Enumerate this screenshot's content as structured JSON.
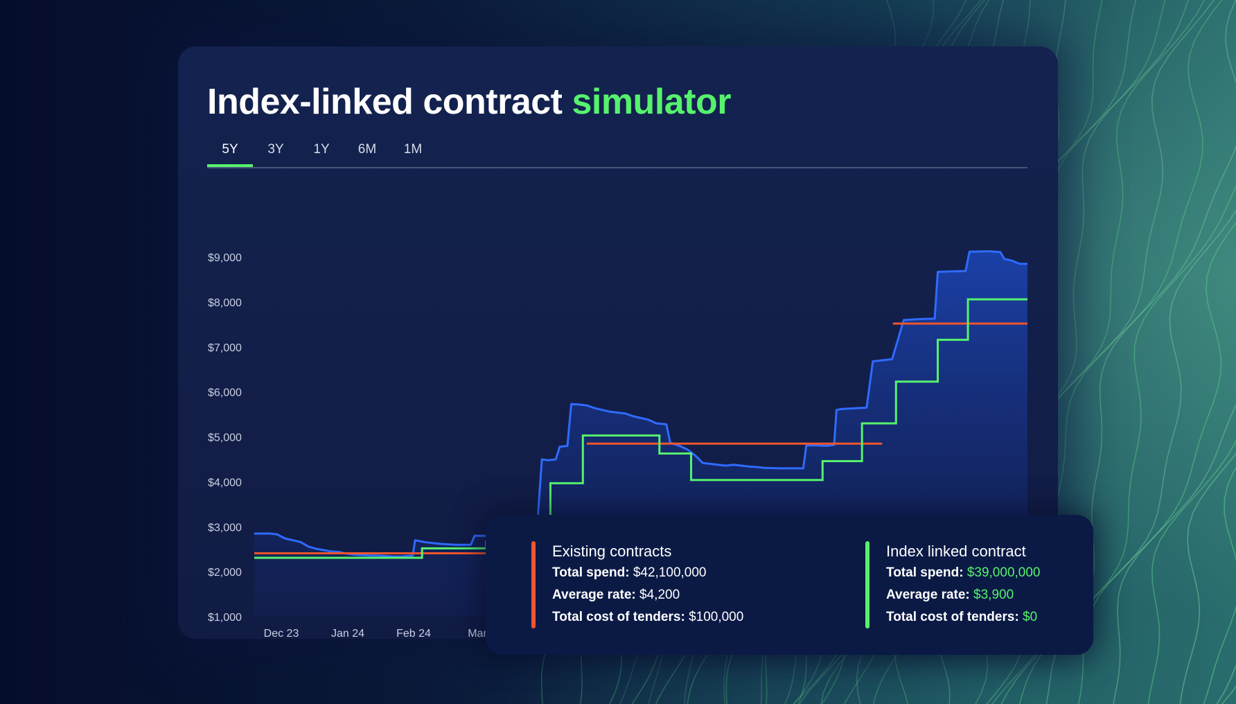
{
  "title": {
    "main": "Index-linked contract ",
    "accent": "simulator"
  },
  "tabs": [
    {
      "label": "5Y",
      "active": true
    },
    {
      "label": "3Y",
      "active": false
    },
    {
      "label": "1Y",
      "active": false
    },
    {
      "label": "6M",
      "active": false
    },
    {
      "label": "1M",
      "active": false
    }
  ],
  "colors": {
    "index_price": "#2f6bff",
    "existing": "#f2552c",
    "index_linked": "#56f26d",
    "accent": "#56f26d"
  },
  "chart_data": {
    "type": "line",
    "ylim": [
      1000,
      9000
    ],
    "yticks": [
      "$1,000",
      "$2,000",
      "$3,000",
      "$4,000",
      "$5,000",
      "$6,000",
      "$7,000",
      "$8,000",
      "$9,000"
    ],
    "xticks": [
      "Dec 23",
      "Jan 24",
      "Feb 24",
      "Mar"
    ],
    "x_range": [
      0,
      100
    ],
    "series": [
      {
        "color_key": "index_price",
        "style": "area",
        "points": [
          [
            0,
            2850
          ],
          [
            2,
            2850
          ],
          [
            3,
            2830
          ],
          [
            3.4,
            2790
          ],
          [
            4,
            2740
          ],
          [
            5,
            2700
          ],
          [
            6,
            2660
          ],
          [
            7,
            2560
          ],
          [
            8,
            2510
          ],
          [
            9,
            2480
          ],
          [
            10,
            2450
          ],
          [
            11,
            2440
          ],
          [
            12,
            2400
          ],
          [
            13,
            2380
          ],
          [
            14,
            2370
          ],
          [
            15,
            2360
          ],
          [
            16,
            2360
          ],
          [
            17,
            2350
          ],
          [
            18,
            2340
          ],
          [
            19,
            2340
          ],
          [
            20.5,
            2360
          ],
          [
            20.8,
            2700
          ],
          [
            22,
            2660
          ],
          [
            24,
            2620
          ],
          [
            26,
            2600
          ],
          [
            28,
            2600
          ],
          [
            28.5,
            2800
          ],
          [
            30,
            2800
          ],
          [
            31.5,
            2810
          ],
          [
            32,
            2980
          ],
          [
            33,
            3010
          ],
          [
            35,
            3030
          ],
          [
            36.6,
            3030
          ],
          [
            37.2,
            4500
          ],
          [
            38,
            4480
          ],
          [
            39,
            4500
          ],
          [
            39.5,
            4780
          ],
          [
            40.5,
            4800
          ],
          [
            41,
            5730
          ],
          [
            42,
            5720
          ],
          [
            43,
            5700
          ],
          [
            44,
            5640
          ],
          [
            45,
            5600
          ],
          [
            46,
            5560
          ],
          [
            47,
            5540
          ],
          [
            48,
            5520
          ],
          [
            49,
            5460
          ],
          [
            50,
            5420
          ],
          [
            51,
            5380
          ],
          [
            52,
            5300
          ],
          [
            53.3,
            5280
          ],
          [
            53.8,
            4870
          ],
          [
            55,
            4800
          ],
          [
            56,
            4720
          ],
          [
            57,
            4590
          ],
          [
            58,
            4420
          ],
          [
            59,
            4400
          ],
          [
            60,
            4380
          ],
          [
            61,
            4360
          ],
          [
            62,
            4380
          ],
          [
            63,
            4360
          ],
          [
            64,
            4340
          ],
          [
            65,
            4330
          ],
          [
            66,
            4310
          ],
          [
            68,
            4300
          ],
          [
            71,
            4300
          ],
          [
            71.4,
            4810
          ],
          [
            73,
            4810
          ],
          [
            74,
            4800
          ],
          [
            75,
            4820
          ],
          [
            75.3,
            5600
          ],
          [
            76,
            5620
          ],
          [
            78,
            5640
          ],
          [
            79.2,
            5650
          ],
          [
            80,
            6680
          ],
          [
            81,
            6700
          ],
          [
            82.5,
            6730
          ],
          [
            84,
            7600
          ],
          [
            86,
            7620
          ],
          [
            88,
            7630
          ],
          [
            88.4,
            8670
          ],
          [
            90,
            8680
          ],
          [
            92,
            8690
          ],
          [
            92.5,
            9120
          ],
          [
            95,
            9130
          ],
          [
            96.5,
            9110
          ],
          [
            97,
            8960
          ],
          [
            98,
            8920
          ],
          [
            99,
            8850
          ],
          [
            100,
            8850
          ]
        ]
      },
      {
        "color_key": "existing",
        "style": "segments",
        "segments": [
          [
            [
              0,
              2410
            ],
            [
              42.2,
              2410
            ]
          ],
          [
            [
              43,
              4850
            ],
            [
              81.2,
              4850
            ]
          ],
          [
            [
              82.6,
              7520
            ],
            [
              100,
              7520
            ]
          ]
        ]
      },
      {
        "color_key": "index_linked",
        "style": "step",
        "points": [
          [
            0,
            2310
          ],
          [
            21.7,
            2310
          ],
          [
            21.7,
            2520
          ],
          [
            30,
            2520
          ],
          [
            30,
            2670
          ],
          [
            38.3,
            2670
          ],
          [
            38.3,
            3970
          ],
          [
            42.5,
            3970
          ],
          [
            42.5,
            5030
          ],
          [
            52.4,
            5030
          ],
          [
            52.4,
            4630
          ],
          [
            56.5,
            4630
          ],
          [
            56.5,
            4040
          ],
          [
            73.5,
            4040
          ],
          [
            73.5,
            4460
          ],
          [
            78.6,
            4460
          ],
          [
            78.6,
            5300
          ],
          [
            83,
            5300
          ],
          [
            83,
            6230
          ],
          [
            88.4,
            6230
          ],
          [
            88.4,
            7160
          ],
          [
            92.3,
            7160
          ],
          [
            92.3,
            8060
          ],
          [
            100,
            8060
          ]
        ]
      }
    ]
  },
  "legend": {
    "existing": {
      "title": "Existing contracts",
      "rows": [
        {
          "label": "Total spend:",
          "value": "$42,100,000"
        },
        {
          "label": "Average rate:",
          "value": "$4,200"
        },
        {
          "label": "Total cost of tenders:",
          "value": "$100,000"
        }
      ]
    },
    "index_linked": {
      "title": "Index linked contract",
      "rows": [
        {
          "label": "Total spend:",
          "value": "$39,000,000"
        },
        {
          "label": "Average rate:",
          "value": "$3,900"
        },
        {
          "label": "Total cost of tenders:",
          "value": "$0"
        }
      ]
    }
  }
}
